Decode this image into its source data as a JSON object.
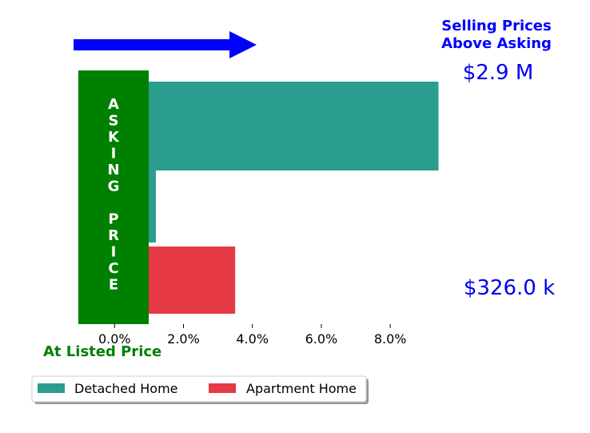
{
  "chart_data": {
    "type": "bar",
    "orientation": "horizontal",
    "xlim": [
      -0.0105,
      0.102
    ],
    "x_ticks": [
      0.0,
      0.02,
      0.04,
      0.06,
      0.08
    ],
    "x_tick_labels": [
      "0.0%",
      "2.0%",
      "4.0%",
      "6.0%",
      "8.0%"
    ],
    "series": [
      {
        "name": "Detached Home",
        "color": "#2a9d8f",
        "values": [
          0.094,
          0.012
        ]
      },
      {
        "name": "Apartment Home",
        "color": "#e63946",
        "values": [
          0.035
        ]
      }
    ],
    "asking_label": "ASKING PRICE",
    "asking_letters": [
      "A",
      "S",
      "K",
      "I",
      "N",
      "G",
      "",
      "P",
      "R",
      "I",
      "C",
      "E"
    ],
    "asking_color": "#008000",
    "arrow_color": "#0000ff",
    "annotations": {
      "above_asking_line1": "Selling Prices",
      "above_asking_line2": "Above Asking",
      "detached_price": "$2.9 M",
      "apartment_price": "$326.0 k",
      "at_listed": "At Listed Price"
    },
    "legend_placement": "bottom-left",
    "legend": [
      "Detached Home",
      "Apartment Home"
    ],
    "grid": false
  }
}
